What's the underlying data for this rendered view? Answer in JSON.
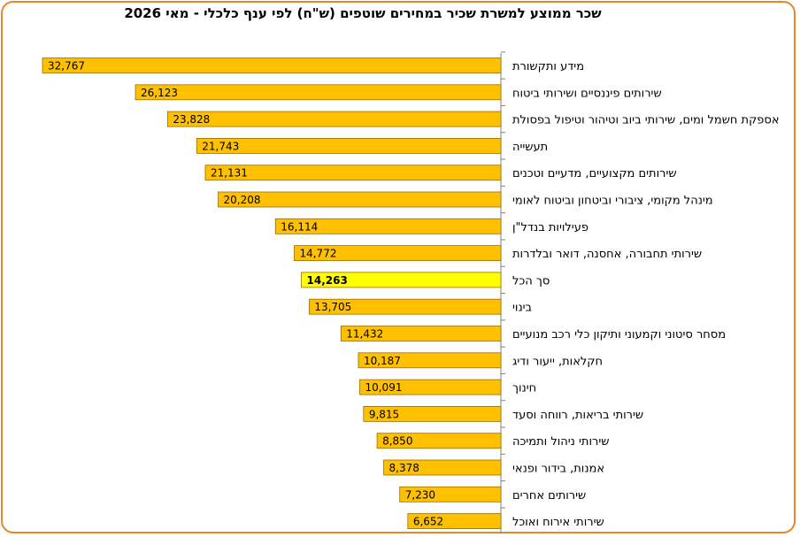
{
  "chart_data": {
    "type": "bar",
    "orientation": "horizontal",
    "title": "שכר ממוצע למשרת שכיר במחירים  שוטפים (ש\"ח) לפי ענף כלכלי - מאי 2026",
    "categories": [
      "מידע ותקשורת",
      "שירותים פיננסיים ושירותי ביטוח",
      "אספקת חשמל ומים, שירותי ביוב וטיהור וטיפול בפסולת",
      "תעשייה",
      "שירותים מקצועיים, מדעיים וטכנים",
      "מינהל מקומי, ציבורי וביטחון וביטוח לאומי",
      "פעילויות בנדל\"ן",
      "שירותי תחבורה, אחסנה, דואר ובלדרות",
      "סך הכל",
      "בינוי",
      "מסחר סיטוני וקמעוני ותיקון כלי רכב מנועיים",
      "חקלאות, ייעור ודיג",
      "חינוך",
      "שירותי בריאות, רווחה וסעד",
      "שירותי ניהול ותמיכה",
      "אמנות, בידור ופנאי",
      "שירותים אחרים",
      "שירותי אירוח ואוכל"
    ],
    "value_labels": [
      "32,767",
      "26,123",
      "23,828",
      "21,743",
      "21,131",
      "20,208",
      "16,114",
      "14,772",
      "14,263",
      "13,705",
      "11,432",
      "10,187",
      "10,091",
      "9,815",
      "8,850",
      "8,378",
      "7,230",
      "6,652"
    ],
    "values": [
      32767,
      26123,
      23828,
      21743,
      21131,
      20208,
      16114,
      14772,
      14263,
      13705,
      11432,
      10187,
      10091,
      9815,
      8850,
      8378,
      7230,
      6652
    ],
    "highlight_index": 8,
    "bar_color": "#ffc000",
    "highlight_color": "#ffff00",
    "bar_border_color": "#9a6d00",
    "frame_color": "#e8862a",
    "bar_direction": "right-to-left",
    "grid": false,
    "legend": "none"
  }
}
